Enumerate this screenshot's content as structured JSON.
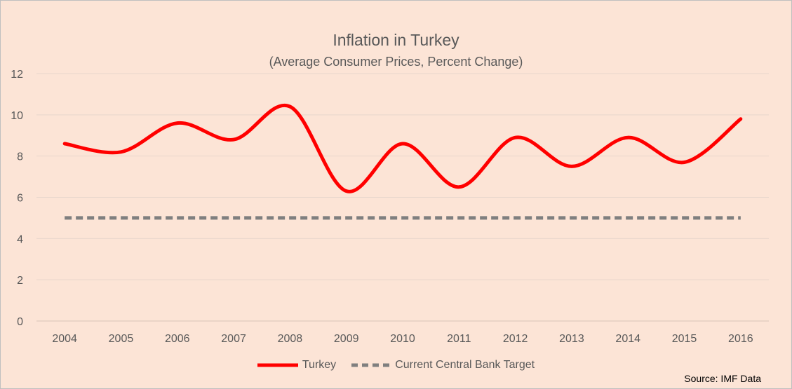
{
  "chart_data": {
    "type": "line",
    "title": "Inflation in Turkey",
    "subtitle": "(Average Consumer Prices, Percent Change)",
    "categories": [
      "2004",
      "2005",
      "2006",
      "2007",
      "2008",
      "2009",
      "2010",
      "2011",
      "2012",
      "2013",
      "2014",
      "2015",
      "2016"
    ],
    "series": [
      {
        "name": "Turkey",
        "values": [
          8.6,
          8.2,
          9.6,
          8.8,
          10.4,
          6.3,
          8.6,
          6.5,
          8.9,
          7.5,
          8.9,
          7.7,
          9.8
        ],
        "color": "#ff0000",
        "style": "smooth"
      },
      {
        "name": "Current Central Bank Target",
        "values": [
          5,
          5,
          5,
          5,
          5,
          5,
          5,
          5,
          5,
          5,
          5,
          5,
          5
        ],
        "color": "#7f7f7f",
        "style": "dashed"
      }
    ],
    "ylim": [
      0,
      12
    ],
    "yticks": [
      0,
      2,
      4,
      6,
      8,
      10,
      12
    ],
    "grid": true,
    "legend_position": "bottom",
    "source": "Source: IMF Data"
  },
  "colors": {
    "background": "#fce4d6",
    "gridline": "#e7d6cc"
  }
}
